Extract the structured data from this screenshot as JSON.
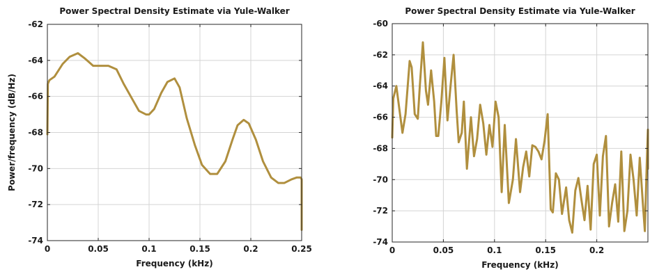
{
  "colors": {
    "line": "#b08f3e"
  },
  "chart_data": [
    {
      "type": "line",
      "title": "Power Spectral Density Estimate via Yule-Walker",
      "xlabel": "Frequency (kHz)",
      "ylabel": "Power/frequency (dB/Hz)",
      "xlim": [
        0,
        0.25
      ],
      "ylim": [
        -74,
        -62
      ],
      "xticks": [
        0,
        0.05,
        0.1,
        0.15,
        0.2,
        0.25
      ],
      "xtick_labels": [
        "0",
        "0.05",
        "0.1",
        "0.15",
        "0.2",
        "0.25"
      ],
      "yticks": [
        -74,
        -72,
        -70,
        -68,
        -66,
        -64,
        -62
      ],
      "ytick_labels": [
        "-74",
        "-72",
        "-70",
        "-68",
        "-66",
        "-64",
        "-62"
      ],
      "grid": true,
      "series": [
        {
          "x": [
            0,
            0.0005,
            0.002,
            0.007,
            0.015,
            0.022,
            0.03,
            0.037,
            0.045,
            0.052,
            0.06,
            0.068,
            0.075,
            0.083,
            0.09,
            0.097,
            0.1,
            0.105,
            0.112,
            0.118,
            0.125,
            0.13,
            0.137,
            0.145,
            0.152,
            0.16,
            0.167,
            0.175,
            0.182,
            0.187,
            0.193,
            0.198,
            0.205,
            0.212,
            0.22,
            0.227,
            0.233,
            0.24,
            0.245,
            0.249,
            0.25,
            0.25
          ],
          "y": [
            -68.1,
            -65.3,
            -65.1,
            -64.9,
            -64.2,
            -63.8,
            -63.6,
            -63.9,
            -64.3,
            -64.3,
            -64.3,
            -64.5,
            -65.3,
            -66.1,
            -66.8,
            -67.0,
            -67.0,
            -66.7,
            -65.8,
            -65.2,
            -65.0,
            -65.5,
            -67.2,
            -68.7,
            -69.8,
            -70.3,
            -70.3,
            -69.6,
            -68.4,
            -67.6,
            -67.3,
            -67.5,
            -68.4,
            -69.6,
            -70.5,
            -70.8,
            -70.8,
            -70.6,
            -70.5,
            -70.5,
            -70.6,
            -73.4
          ]
        }
      ]
    },
    {
      "type": "line",
      "title": "Power Spectral Density Estimate via Yule-Walker",
      "xlabel": "Frequency (kHz)",
      "ylabel": "",
      "xlim": [
        0,
        0.25
      ],
      "ylim": [
        -74,
        -60
      ],
      "xticks": [
        0,
        0.05,
        0.1,
        0.15,
        0.2
      ],
      "xtick_labels": [
        "0",
        "0.05",
        "0.1",
        "0.15",
        "0.2"
      ],
      "yticks": [
        -74,
        -72,
        -70,
        -68,
        -66,
        -64,
        -62,
        -60
      ],
      "ytick_labels": [
        "-74",
        "-72",
        "-70",
        "-68",
        "-66",
        "-64",
        "-62",
        "-60"
      ],
      "grid": true,
      "series": [
        {
          "x": [
            0,
            0.001,
            0.004,
            0.007,
            0.01,
            0.013,
            0.017,
            0.019,
            0.022,
            0.025,
            0.027,
            0.03,
            0.033,
            0.035,
            0.038,
            0.041,
            0.043,
            0.045,
            0.048,
            0.051,
            0.054,
            0.057,
            0.06,
            0.063,
            0.065,
            0.068,
            0.07,
            0.073,
            0.077,
            0.08,
            0.083,
            0.086,
            0.089,
            0.092,
            0.095,
            0.098,
            0.101,
            0.104,
            0.107,
            0.11,
            0.114,
            0.118,
            0.121,
            0.125,
            0.128,
            0.131,
            0.134,
            0.137,
            0.14,
            0.143,
            0.146,
            0.149,
            0.152,
            0.155,
            0.157,
            0.16,
            0.163,
            0.166,
            0.17,
            0.173,
            0.176,
            0.179,
            0.182,
            0.185,
            0.188,
            0.191,
            0.194,
            0.197,
            0.2,
            0.203,
            0.206,
            0.209,
            0.212,
            0.215,
            0.218,
            0.221,
            0.224,
            0.227,
            0.23,
            0.233,
            0.236,
            0.239,
            0.242,
            0.245,
            0.247,
            0.249,
            0.25,
            0.25
          ],
          "y": [
            -67.3,
            -64.8,
            -64.0,
            -65.5,
            -67.0,
            -65.8,
            -62.4,
            -62.8,
            -65.8,
            -66.1,
            -64.0,
            -61.2,
            -64.3,
            -65.2,
            -63.0,
            -65.0,
            -67.2,
            -67.2,
            -65.0,
            -62.2,
            -66.2,
            -64.0,
            -62.0,
            -65.6,
            -67.6,
            -67.0,
            -65.0,
            -69.3,
            -66.0,
            -68.5,
            -67.4,
            -65.2,
            -66.4,
            -68.4,
            -66.5,
            -67.9,
            -65.0,
            -66.0,
            -70.8,
            -66.5,
            -71.5,
            -70.0,
            -67.4,
            -70.8,
            -69.2,
            -68.2,
            -69.8,
            -67.8,
            -67.9,
            -68.2,
            -68.7,
            -67.5,
            -65.8,
            -71.9,
            -72.1,
            -69.6,
            -70.0,
            -72.2,
            -70.5,
            -72.6,
            -73.4,
            -70.7,
            -69.9,
            -71.3,
            -72.6,
            -70.4,
            -73.2,
            -69.0,
            -68.4,
            -72.3,
            -68.5,
            -67.2,
            -73.0,
            -71.5,
            -70.3,
            -72.7,
            -68.2,
            -73.3,
            -72.0,
            -68.4,
            -70.0,
            -72.3,
            -68.6,
            -71.5,
            -73.3,
            -68.8,
            -66.8,
            -69.3
          ]
        }
      ]
    }
  ]
}
